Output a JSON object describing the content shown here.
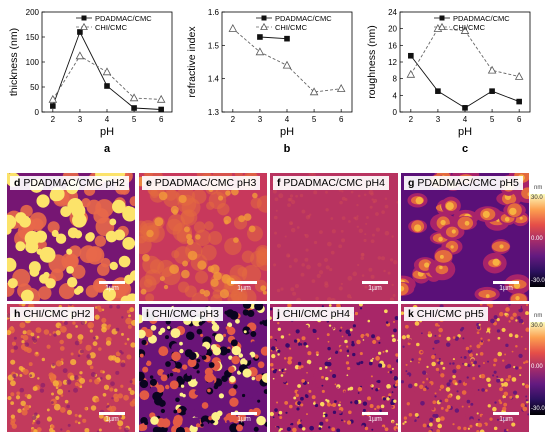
{
  "chart_data": [
    {
      "type": "line",
      "panel_letter": "a",
      "xlabel": "pH",
      "ylabel": "thickness (nm)",
      "xlim": [
        1.6,
        6.4
      ],
      "ylim": [
        0,
        200
      ],
      "xticks": [
        2,
        3,
        4,
        5,
        6
      ],
      "yticks": [
        0,
        50,
        100,
        150,
        200
      ],
      "legend": "top-right",
      "series": [
        {
          "name": "PDADMAC/CMC",
          "marker": "square",
          "line": "solid",
          "x": [
            2,
            3,
            4,
            5,
            6
          ],
          "y": [
            12,
            160,
            52,
            8,
            5
          ]
        },
        {
          "name": "CHI/CMC",
          "marker": "triangle",
          "line": "dashed",
          "x": [
            2,
            3,
            4,
            5,
            6
          ],
          "y": [
            25,
            112,
            80,
            28,
            25
          ]
        }
      ]
    },
    {
      "type": "line",
      "panel_letter": "b",
      "xlabel": "pH",
      "ylabel": "refractive index",
      "xlim": [
        1.6,
        6.4
      ],
      "ylim": [
        1.3,
        1.6
      ],
      "xticks": [
        2,
        3,
        4,
        5,
        6
      ],
      "yticks": [
        1.3,
        1.4,
        1.5,
        1.6
      ],
      "legend": "top-right",
      "series": [
        {
          "name": "PDADMAC/CMC",
          "marker": "square",
          "line": "solid",
          "x": [
            3,
            4
          ],
          "y": [
            1.525,
            1.52
          ]
        },
        {
          "name": "CHI/CMC",
          "marker": "triangle",
          "line": "dashed",
          "x": [
            2,
            3,
            4,
            5,
            6
          ],
          "y": [
            1.55,
            1.48,
            1.44,
            1.36,
            1.37
          ]
        }
      ]
    },
    {
      "type": "line",
      "panel_letter": "c",
      "xlabel": "pH",
      "ylabel": "roughness (nm)",
      "xlim": [
        1.6,
        6.4
      ],
      "ylim": [
        0,
        24
      ],
      "xticks": [
        2,
        3,
        4,
        5,
        6
      ],
      "yticks": [
        0,
        4,
        8,
        12,
        16,
        20,
        24
      ],
      "legend": "top-right",
      "series": [
        {
          "name": "PDADMAC/CMC",
          "marker": "square",
          "line": "solid",
          "x": [
            2,
            3,
            4,
            5,
            6
          ],
          "y": [
            13.5,
            5,
            1,
            5,
            2.5
          ]
        },
        {
          "name": "CHI/CMC",
          "marker": "triangle",
          "line": "dashed",
          "x": [
            2,
            3,
            4,
            5,
            6
          ],
          "y": [
            9,
            20,
            19.5,
            10,
            8.5
          ]
        }
      ]
    }
  ],
  "afm_panels": [
    {
      "letter": "d",
      "label": "PDADMAC/CMC pH2",
      "pattern": "large-dots",
      "colors": [
        "#4a0b7a",
        "#9c1f6e",
        "#e8684a",
        "#fce36a"
      ]
    },
    {
      "letter": "e",
      "label": "PDADMAC/CMC pH3",
      "pattern": "soft-dots",
      "colors": [
        "#9a2a6b",
        "#c8385c",
        "#e36a3f",
        "#f39a3a"
      ]
    },
    {
      "letter": "f",
      "label": "PDADMAC/CMC pH4",
      "pattern": "flat",
      "colors": [
        "#a32c68",
        "#b83360",
        "#c8405a",
        "#d04c55"
      ]
    },
    {
      "letter": "g",
      "label": "PDADMAC/CMC pH5",
      "pattern": "network",
      "colors": [
        "#5a1078",
        "#a8236a",
        "#e36a3f",
        "#f7b240"
      ]
    },
    {
      "letter": "h",
      "label": "CHI/CMC pH2",
      "pattern": "fine-dots",
      "colors": [
        "#8a1e6c",
        "#c23a5c",
        "#e86c40",
        "#f8b43a"
      ]
    },
    {
      "letter": "i",
      "label": "CHI/CMC pH3",
      "pattern": "coarse-noise",
      "colors": [
        "#0a0420",
        "#6a1478",
        "#e35a45",
        "#fcf08a"
      ]
    },
    {
      "letter": "j",
      "label": "CHI/CMC pH4",
      "pattern": "fine-noise",
      "colors": [
        "#3a0a6a",
        "#a82668",
        "#ec7040",
        "#fbd660"
      ]
    },
    {
      "letter": "k",
      "label": "CHI/CMC pH5",
      "pattern": "fine-noise",
      "colors": [
        "#6a1878",
        "#b22e62",
        "#e8683f",
        "#f9c24a"
      ]
    }
  ],
  "scale_bar": "1µm",
  "colorbar": {
    "unit": "nm",
    "max": "30.0",
    "mid": "0.00",
    "min": "-30.0",
    "colors": [
      "#fcfdbf",
      "#fca050",
      "#e54e48",
      "#a42c6b",
      "#641a80",
      "#2c115f",
      "#000004"
    ]
  },
  "colors": {
    "square": "#111111",
    "triangle": "#555555"
  }
}
